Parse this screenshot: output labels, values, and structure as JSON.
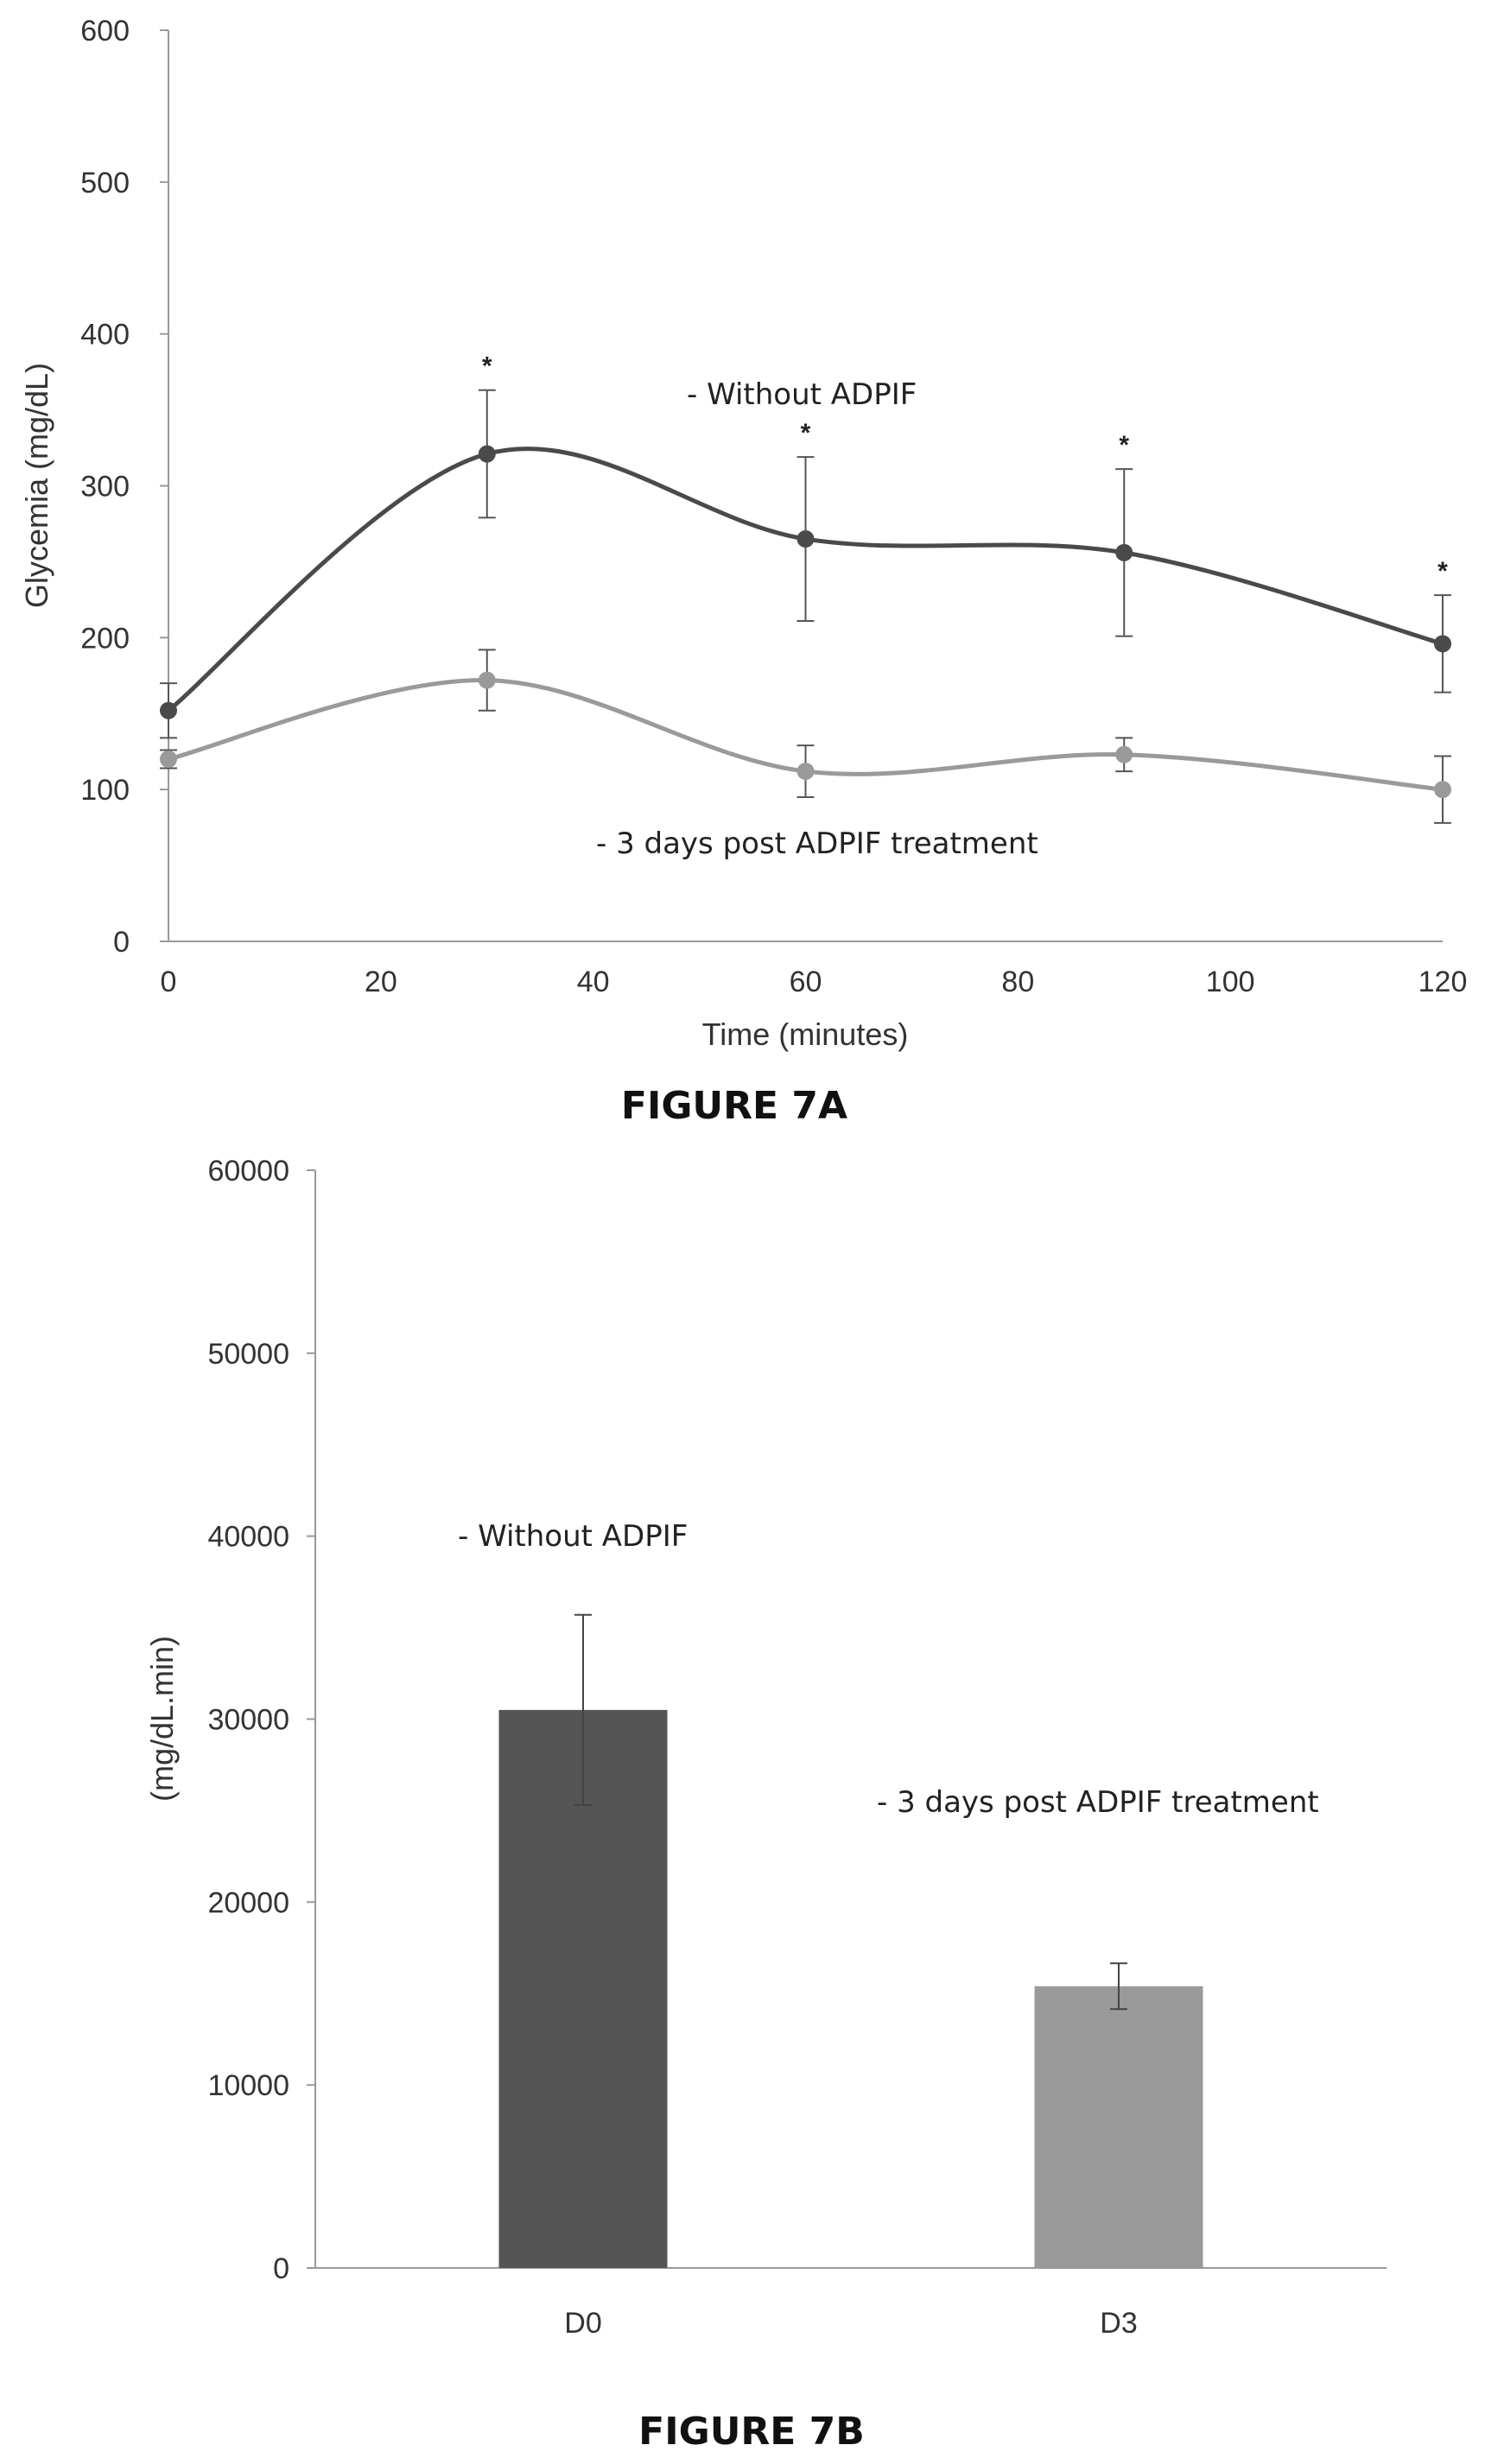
{
  "figures": [
    {
      "caption": "FIGURE 7A"
    },
    {
      "caption": "FIGURE 7B"
    }
  ],
  "chart_data": [
    {
      "type": "line",
      "xlabel": "Time (minutes)",
      "ylabel": "Glycemia (mg/dL)",
      "xlim": [
        0,
        120
      ],
      "ylim": [
        0,
        600
      ],
      "x_ticks": [
        "0",
        "20",
        "40",
        "60",
        "80",
        "100",
        "120"
      ],
      "y_ticks": [
        "0",
        "100",
        "200",
        "300",
        "400",
        "500",
        "600"
      ],
      "x": [
        0,
        30,
        60,
        90,
        120
      ],
      "smooth": true,
      "grid": false,
      "series": [
        {
          "name": "- Without ADPIF",
          "color": "#4a4a4a",
          "values": [
            152,
            321,
            265,
            256,
            196
          ],
          "error": [
            18,
            42,
            54,
            55,
            32
          ],
          "significance": [
            "",
            "*",
            "*",
            "*",
            "*"
          ]
        },
        {
          "name": "- 3 days post ADPIF treatment",
          "color": "#9a9a9a",
          "values": [
            120,
            172,
            112,
            123,
            100
          ],
          "error": [
            6,
            20,
            17,
            11,
            22
          ],
          "significance": [
            "",
            "",
            "",
            "",
            ""
          ]
        }
      ]
    },
    {
      "type": "bar",
      "ylabel": "(mg/dL.min)",
      "ylim": [
        0,
        60000
      ],
      "y_ticks": [
        "0",
        "10000",
        "20000",
        "30000",
        "40000",
        "50000",
        "60000"
      ],
      "categories": [
        "D0",
        "D3"
      ],
      "grid": false,
      "series": [
        {
          "name": "- Without ADPIF",
          "color": "#555555",
          "values": [
            30500,
            null
          ],
          "error": [
            5200,
            null
          ]
        },
        {
          "name": "- 3 days post ADPIF treatment",
          "color": "#9a9a9a",
          "values": [
            null,
            15400
          ],
          "error": [
            null,
            1250
          ]
        }
      ]
    }
  ]
}
